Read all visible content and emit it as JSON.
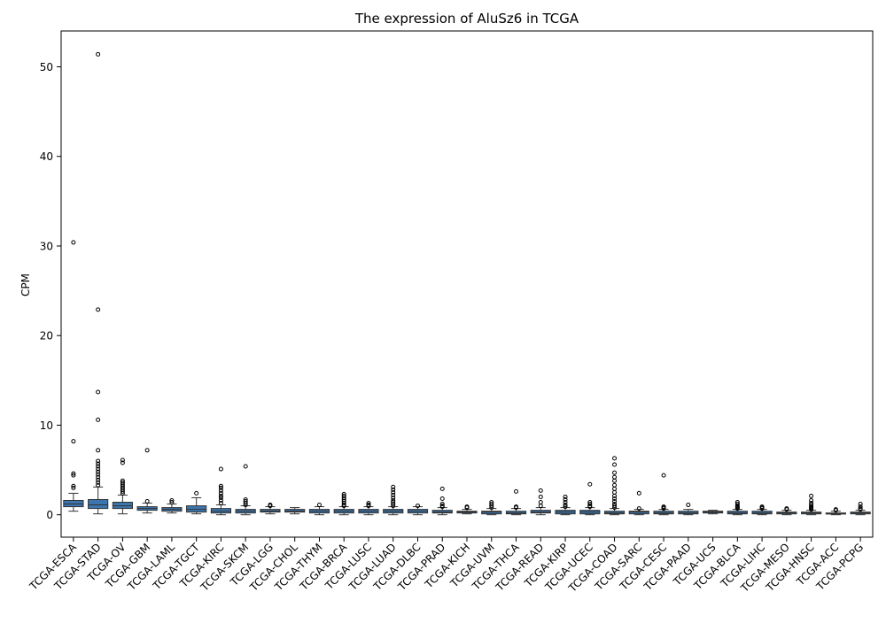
{
  "chart_data": {
    "type": "box",
    "title": "The expression of AluSz6 in TCGA",
    "xlabel": "",
    "ylabel": "CPM",
    "ylim": [
      -2.5,
      54
    ],
    "yticks": [
      0,
      10,
      20,
      30,
      40,
      50
    ],
    "grid": false,
    "legend": "none",
    "colors": {
      "box_fill": "#3b75af",
      "line": "#333333"
    },
    "categories": [
      "TCGA-ESCA",
      "TCGA-STAD",
      "TCGA-OV",
      "TCGA-GBM",
      "TCGA-LAML",
      "TCGA-TGCT",
      "TCGA-KIRC",
      "TCGA-SKCM",
      "TCGA-LGG",
      "TCGA-CHOL",
      "TCGA-THYM",
      "TCGA-BRCA",
      "TCGA-LUSC",
      "TCGA-LUAD",
      "TCGA-DLBC",
      "TCGA-PRAD",
      "TCGA-KICH",
      "TCGA-UVM",
      "TCGA-THCA",
      "TCGA-READ",
      "TCGA-KIRP",
      "TCGA-UCEC",
      "TCGA-COAD",
      "TCGA-SARC",
      "TCGA-CESC",
      "TCGA-PAAD",
      "TCGA-UCS",
      "TCGA-BLCA",
      "TCGA-LIHC",
      "TCGA-MESO",
      "TCGA-HNSC",
      "TCGA-ACC",
      "TCGA-PCPG"
    ],
    "boxes": [
      {
        "whislo": 0.4,
        "q1": 0.9,
        "med": 1.2,
        "q3": 1.6,
        "whishi": 2.4,
        "fliers": [
          3.0,
          3.2,
          4.4,
          4.6,
          8.2,
          30.4
        ]
      },
      {
        "whislo": 0.1,
        "q1": 0.7,
        "med": 1.1,
        "q3": 1.7,
        "whishi": 3.1,
        "fliers": [
          3.3,
          3.6,
          3.9,
          4.2,
          4.5,
          4.8,
          5.1,
          5.4,
          5.7,
          6.0,
          7.2,
          10.6,
          13.7,
          22.9,
          51.4
        ]
      },
      {
        "whislo": 0.1,
        "q1": 0.7,
        "med": 1.0,
        "q3": 1.4,
        "whishi": 2.2,
        "fliers": [
          2.4,
          2.6,
          2.8,
          3.0,
          3.2,
          3.4,
          3.6,
          3.8,
          5.8,
          6.1
        ]
      },
      {
        "whislo": 0.2,
        "q1": 0.5,
        "med": 0.7,
        "q3": 0.9,
        "whishi": 1.3,
        "fliers": [
          1.5,
          7.2
        ]
      },
      {
        "whislo": 0.2,
        "q1": 0.4,
        "med": 0.6,
        "q3": 0.8,
        "whishi": 1.2,
        "fliers": [
          1.4,
          1.6
        ]
      },
      {
        "whislo": 0.1,
        "q1": 0.3,
        "med": 0.6,
        "q3": 1.0,
        "whishi": 1.9,
        "fliers": [
          2.4
        ]
      },
      {
        "whislo": 0.0,
        "q1": 0.2,
        "med": 0.4,
        "q3": 0.7,
        "whishi": 1.1,
        "fliers": [
          1.3,
          1.6,
          1.9,
          2.1,
          2.4,
          2.7,
          3.0,
          3.2,
          5.1
        ]
      },
      {
        "whislo": 0.0,
        "q1": 0.2,
        "med": 0.4,
        "q3": 0.6,
        "whishi": 1.0,
        "fliers": [
          1.1,
          1.3,
          1.5,
          1.7,
          5.4
        ]
      },
      {
        "whislo": 0.1,
        "q1": 0.3,
        "med": 0.4,
        "q3": 0.6,
        "whishi": 0.9,
        "fliers": [
          1.0,
          1.1
        ]
      },
      {
        "whislo": 0.1,
        "q1": 0.3,
        "med": 0.4,
        "q3": 0.6,
        "whishi": 0.8,
        "fliers": []
      },
      {
        "whislo": 0.0,
        "q1": 0.2,
        "med": 0.4,
        "q3": 0.6,
        "whishi": 0.9,
        "fliers": [
          1.1
        ]
      },
      {
        "whislo": 0.0,
        "q1": 0.2,
        "med": 0.4,
        "q3": 0.6,
        "whishi": 0.9,
        "fliers": [
          1.0,
          1.1,
          1.3,
          1.5,
          1.7,
          1.9,
          2.1,
          2.3
        ]
      },
      {
        "whislo": 0.0,
        "q1": 0.2,
        "med": 0.4,
        "q3": 0.6,
        "whishi": 0.9,
        "fliers": [
          1.0,
          1.1,
          1.3
        ]
      },
      {
        "whislo": 0.0,
        "q1": 0.2,
        "med": 0.4,
        "q3": 0.6,
        "whishi": 0.9,
        "fliers": [
          1.0,
          1.2,
          1.4,
          1.6,
          1.9,
          2.2,
          2.5,
          2.8,
          3.1
        ]
      },
      {
        "whislo": 0.0,
        "q1": 0.2,
        "med": 0.4,
        "q3": 0.6,
        "whishi": 0.9,
        "fliers": [
          1.0
        ]
      },
      {
        "whislo": 0.0,
        "q1": 0.2,
        "med": 0.3,
        "q3": 0.5,
        "whishi": 0.8,
        "fliers": [
          0.9,
          1.0,
          1.2,
          1.8,
          2.9
        ]
      },
      {
        "whislo": 0.1,
        "q1": 0.2,
        "med": 0.3,
        "q3": 0.4,
        "whishi": 0.6,
        "fliers": [
          0.8,
          0.9
        ]
      },
      {
        "whislo": 0.0,
        "q1": 0.1,
        "med": 0.3,
        "q3": 0.4,
        "whishi": 0.7,
        "fliers": [
          0.8,
          1.0,
          1.2,
          1.4
        ]
      },
      {
        "whislo": 0.0,
        "q1": 0.1,
        "med": 0.2,
        "q3": 0.4,
        "whishi": 0.7,
        "fliers": [
          0.8,
          0.9,
          2.6
        ]
      },
      {
        "whislo": 0.0,
        "q1": 0.2,
        "med": 0.3,
        "q3": 0.5,
        "whishi": 0.8,
        "fliers": [
          1.0,
          1.4,
          2.0,
          2.7
        ]
      },
      {
        "whislo": 0.0,
        "q1": 0.1,
        "med": 0.3,
        "q3": 0.5,
        "whishi": 0.8,
        "fliers": [
          0.9,
          1.1,
          1.4,
          1.7,
          2.0
        ]
      },
      {
        "whislo": 0.0,
        "q1": 0.1,
        "med": 0.3,
        "q3": 0.5,
        "whishi": 0.8,
        "fliers": [
          0.9,
          1.0,
          1.2,
          1.4,
          3.4
        ]
      },
      {
        "whislo": 0.0,
        "q1": 0.1,
        "med": 0.2,
        "q3": 0.4,
        "whishi": 0.7,
        "fliers": [
          0.8,
          1.0,
          1.2,
          1.5,
          1.8,
          2.1,
          2.5,
          2.9,
          3.3,
          3.8,
          4.2,
          4.7,
          5.6,
          6.3
        ]
      },
      {
        "whislo": 0.0,
        "q1": 0.1,
        "med": 0.3,
        "q3": 0.4,
        "whishi": 0.6,
        "fliers": [
          0.7,
          2.4
        ]
      },
      {
        "whislo": 0.0,
        "q1": 0.1,
        "med": 0.2,
        "q3": 0.4,
        "whishi": 0.6,
        "fliers": [
          0.7,
          0.8,
          0.9,
          4.4
        ]
      },
      {
        "whislo": 0.0,
        "q1": 0.1,
        "med": 0.2,
        "q3": 0.4,
        "whishi": 0.6,
        "fliers": [
          1.1
        ]
      },
      {
        "whislo": 0.1,
        "q1": 0.2,
        "med": 0.3,
        "q3": 0.4,
        "whishi": 0.5,
        "fliers": []
      },
      {
        "whislo": 0.0,
        "q1": 0.1,
        "med": 0.2,
        "q3": 0.4,
        "whishi": 0.6,
        "fliers": [
          0.7,
          0.8,
          0.9,
          1.0,
          1.2,
          1.4
        ]
      },
      {
        "whislo": 0.0,
        "q1": 0.1,
        "med": 0.2,
        "q3": 0.4,
        "whishi": 0.6,
        "fliers": [
          0.7,
          0.8,
          0.9
        ]
      },
      {
        "whislo": 0.0,
        "q1": 0.1,
        "med": 0.2,
        "q3": 0.3,
        "whishi": 0.5,
        "fliers": [
          0.6,
          0.7
        ]
      },
      {
        "whislo": 0.0,
        "q1": 0.1,
        "med": 0.2,
        "q3": 0.3,
        "whishi": 0.5,
        "fliers": [
          0.6,
          0.7,
          0.8,
          0.9,
          1.1,
          1.3,
          1.6,
          2.1
        ]
      },
      {
        "whislo": 0.0,
        "q1": 0.1,
        "med": 0.1,
        "q3": 0.2,
        "whishi": 0.4,
        "fliers": [
          0.5,
          0.6
        ]
      },
      {
        "whislo": 0.0,
        "q1": 0.1,
        "med": 0.2,
        "q3": 0.3,
        "whishi": 0.5,
        "fliers": [
          0.6,
          0.7,
          0.9,
          1.2
        ]
      }
    ]
  }
}
